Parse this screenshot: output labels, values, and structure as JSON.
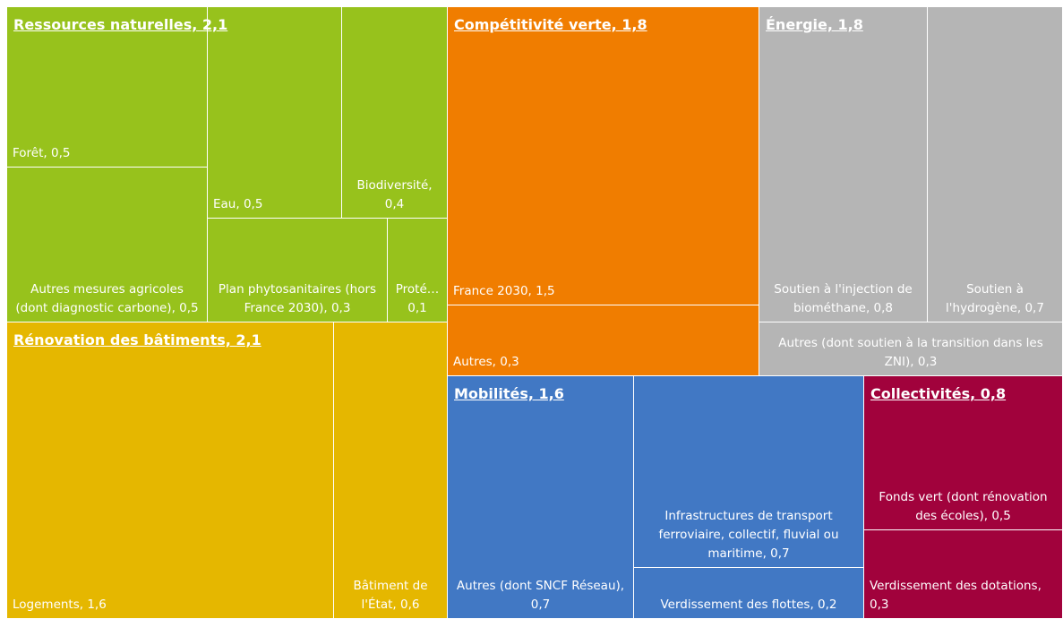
{
  "chart_data": {
    "type": "treemap",
    "groups": [
      {
        "label": "Ressources naturelles, 2,1",
        "value": 2.1,
        "color": "#97c21c",
        "children": [
          {
            "label": "Forêt, 0,5",
            "value": 0.5
          },
          {
            "label": "Autres mesures agricoles (dont diagnostic carbone), 0,5",
            "value": 0.5
          },
          {
            "label": "Eau, 0,5",
            "value": 0.5
          },
          {
            "label": "Biodiversité, 0,4",
            "value": 0.4
          },
          {
            "label": "Plan phytosanitaires (hors France 2030), 0,3",
            "value": 0.3
          },
          {
            "label": "Proté… 0,1",
            "value": 0.1
          }
        ]
      },
      {
        "label": "Rénovation des bâtiments, 2,1",
        "value": 2.1,
        "color": "#e5b700",
        "children": [
          {
            "label": "Logements, 1,6",
            "value": 1.6
          },
          {
            "label": "Bâtiment de l'État, 0,6",
            "value": 0.6
          }
        ]
      },
      {
        "label": "Compétitivité verte, 1,8",
        "value": 1.8,
        "color": "#f07d00",
        "children": [
          {
            "label": "France 2030, 1,5",
            "value": 1.5
          },
          {
            "label": "Autres, 0,3",
            "value": 0.3
          }
        ]
      },
      {
        "label": "Énergie, 1,8",
        "value": 1.8,
        "color": "#b5b5b5",
        "children": [
          {
            "label": "Soutien à l'injection de biométhane, 0,8",
            "value": 0.8
          },
          {
            "label": "Soutien à l'hydrogène, 0,7",
            "value": 0.7
          },
          {
            "label": "Autres (dont soutien à la transition dans les ZNI), 0,3",
            "value": 0.3
          }
        ]
      },
      {
        "label": "Mobilités, 1,6",
        "value": 1.6,
        "color": "#4178c4",
        "children": [
          {
            "label": "Autres (dont SNCF Réseau), 0,7",
            "value": 0.7
          },
          {
            "label": "Infrastructures de transport ferroviaire, collectif, fluvial ou maritime, 0,7",
            "value": 0.7
          },
          {
            "label": "Verdissement des flottes, 0,2",
            "value": 0.2
          }
        ]
      },
      {
        "label": "Collectivités, 0,8",
        "value": 0.8,
        "color": "#a1023c",
        "children": [
          {
            "label": "Fonds vert (dont rénovation des écoles), 0,5",
            "value": 0.5
          },
          {
            "label": "Verdissement des dotations, 0,3",
            "value": 0.3
          }
        ]
      }
    ]
  }
}
